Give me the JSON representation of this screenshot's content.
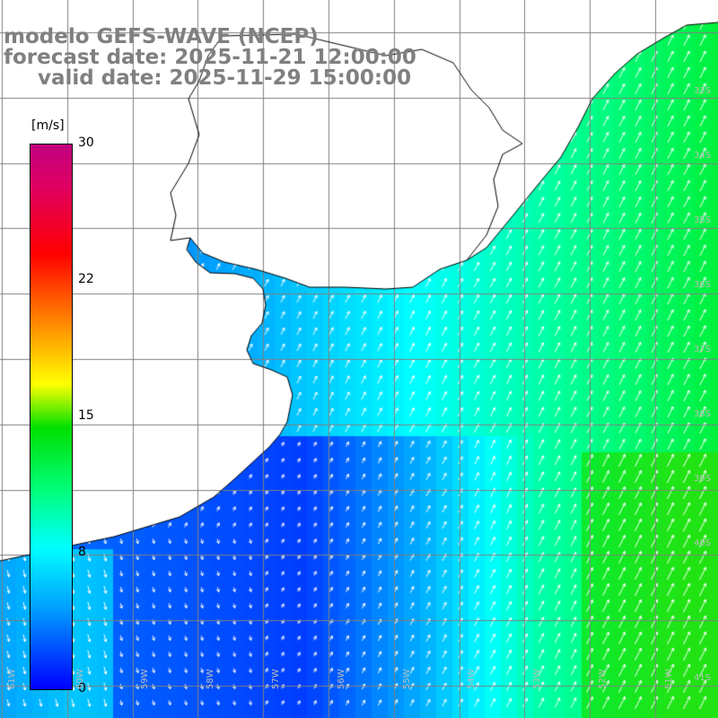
{
  "title": {
    "line1": "modelo GEFS-WAVE (NCEP)",
    "line2": "forecast date: 2025-11-21 12:00:00",
    "line3": "valid date: 2025-11-29 15:00:00"
  },
  "colorbar": {
    "units": "[m/s]",
    "ticks": [
      "30",
      "22",
      "15",
      "8",
      "0"
    ],
    "tick_values": [
      30,
      22,
      15,
      8,
      0
    ]
  },
  "lat_labels": [
    "33S",
    "34S",
    "35S",
    "36S",
    "37S",
    "38S",
    "39S",
    "40S",
    "41S"
  ],
  "lon_labels": [
    "61W",
    "60W",
    "59W",
    "58W",
    "57W",
    "56W",
    "55W",
    "54W",
    "53W",
    "52W",
    "51W"
  ],
  "colors": {
    "land": "#ffffff",
    "grid": "#808080",
    "coast": "#000000",
    "arrows": "#ffffff"
  }
}
